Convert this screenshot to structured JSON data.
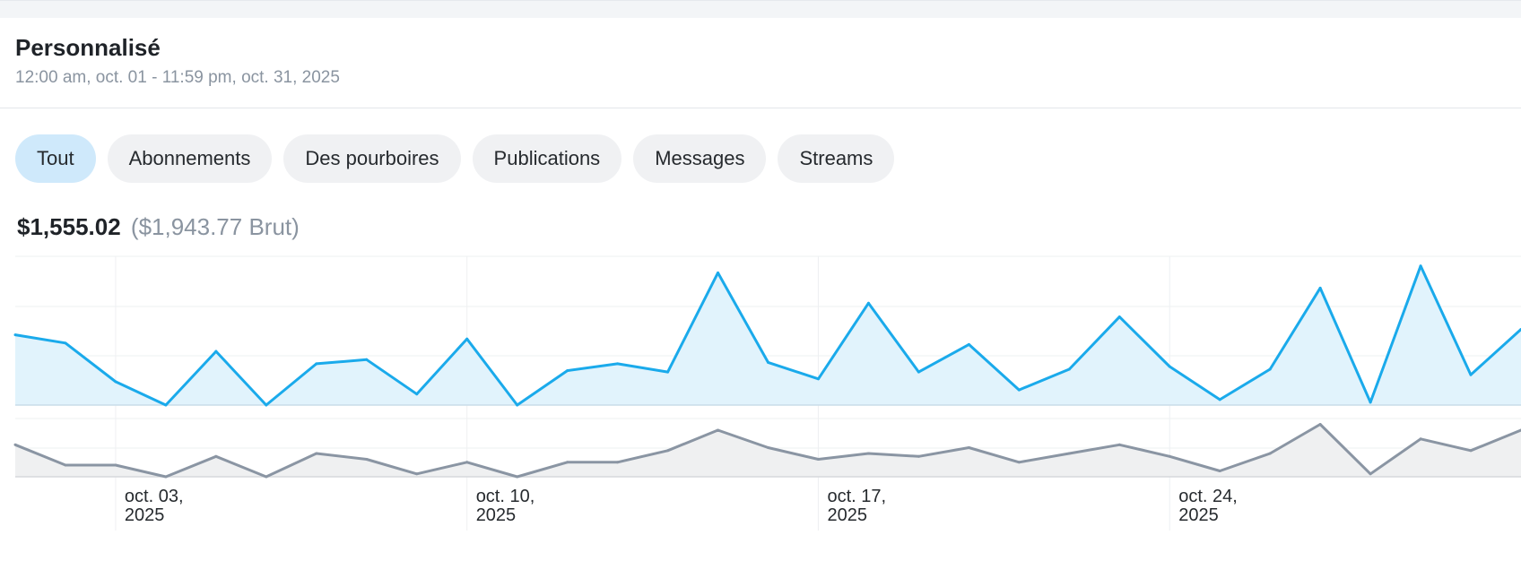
{
  "header": {
    "title": "Personnalisé",
    "date_range": "12:00 am, oct. 01 - 11:59 pm, oct. 31, 2025"
  },
  "tabs": [
    {
      "label": "Tout",
      "active": true
    },
    {
      "label": "Abonnements",
      "active": false
    },
    {
      "label": "Des pourboires",
      "active": false
    },
    {
      "label": "Publications",
      "active": false
    },
    {
      "label": "Messages",
      "active": false
    },
    {
      "label": "Streams",
      "active": false
    }
  ],
  "totals": {
    "net": "$1,555.02",
    "gross": "($1,943.77 Brut)"
  },
  "chart_data": {
    "type": "area",
    "x": [
      "2025-10-01",
      "2025-10-02",
      "2025-10-03",
      "2025-10-04",
      "2025-10-05",
      "2025-10-06",
      "2025-10-07",
      "2025-10-08",
      "2025-10-09",
      "2025-10-10",
      "2025-10-11",
      "2025-10-12",
      "2025-10-13",
      "2025-10-14",
      "2025-10-15",
      "2025-10-16",
      "2025-10-17",
      "2025-10-18",
      "2025-10-19",
      "2025-10-20",
      "2025-10-21",
      "2025-10-22",
      "2025-10-23",
      "2025-10-24",
      "2025-10-25",
      "2025-10-26",
      "2025-10-27",
      "2025-10-28",
      "2025-10-29",
      "2025-10-30",
      "2025-10-31"
    ],
    "x_tick_labels": [
      {
        "date": "2025-10-03",
        "line1": "oct. 03,",
        "line2": "2025"
      },
      {
        "date": "2025-10-10",
        "line1": "oct. 10,",
        "line2": "2025"
      },
      {
        "date": "2025-10-17",
        "line1": "oct. 17,",
        "line2": "2025"
      },
      {
        "date": "2025-10-24",
        "line1": "oct. 24,",
        "line2": "2025"
      }
    ],
    "series": [
      {
        "color": "#1aaaeb",
        "fill": "#e1f3fc",
        "values": [
          51,
          45,
          17,
          0,
          39,
          0,
          30,
          33,
          8,
          48,
          0,
          25,
          30,
          24,
          96,
          31,
          19,
          74,
          24,
          44,
          11,
          26,
          64,
          28,
          4,
          26,
          85,
          2,
          101,
          22,
          55
        ]
      },
      {
        "color": "#8a95a3",
        "fill": "#eff0f1",
        "values": [
          11,
          4,
          4,
          0,
          7,
          0,
          8,
          6,
          1,
          5,
          0,
          5,
          5,
          9,
          16,
          10,
          6,
          8,
          7,
          10,
          5,
          8,
          11,
          7,
          2,
          8,
          18,
          1,
          13,
          9,
          16
        ]
      }
    ],
    "grid": true,
    "legend": "none"
  }
}
